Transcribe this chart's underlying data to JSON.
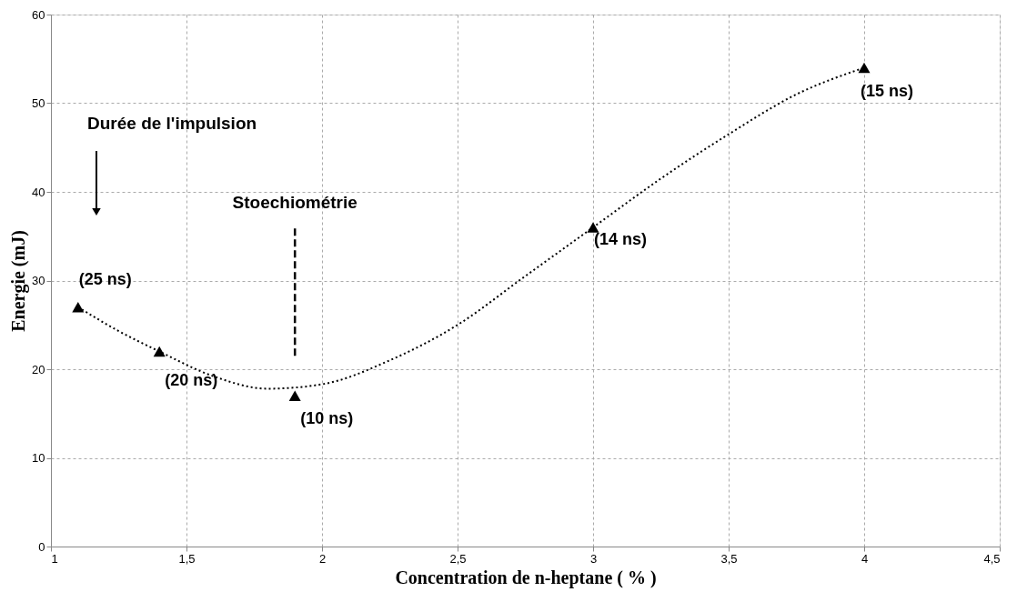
{
  "chart_data": {
    "type": "scatter",
    "xlabel": "Concentration de n-heptane ( % )",
    "ylabel": "Energie (mJ)",
    "xlim": [
      1,
      4.5
    ],
    "xticks": [
      1,
      {
        "value": 1.5,
        "label": "1,5"
      },
      2,
      {
        "value": 2.5,
        "label": "2,5"
      },
      3,
      {
        "value": 3.5,
        "label": "3,5"
      },
      4,
      {
        "value": 4.5,
        "label": "4,5"
      }
    ],
    "ylim": [
      0,
      60
    ],
    "yticks": [
      0,
      10,
      20,
      30,
      40,
      50,
      60
    ],
    "grid": true,
    "series": [
      {
        "type": "scatter",
        "color": "#000000",
        "marker": "triangle",
        "x": [
          1.1,
          1.4,
          1.9,
          3.0,
          4.0
        ],
        "values": [
          27,
          22,
          17,
          36,
          54
        ]
      },
      {
        "type": "line",
        "color": "#000000",
        "line_style": "dotted",
        "marker": "none",
        "x": [
          1.1,
          1.25,
          1.4,
          1.6,
          1.8,
          2.0,
          2.25,
          2.5,
          2.75,
          3.0,
          3.25,
          3.5,
          3.75,
          4.0
        ],
        "values": [
          27,
          24.3,
          22,
          19.2,
          17.8,
          18.3,
          21,
          25,
          30.5,
          36,
          41.5,
          46.5,
          51,
          54
        ]
      }
    ],
    "ref_lines": [
      {
        "axis": "x",
        "value": 1.9,
        "label": "Stoechiométrie",
        "line_style": "dashed",
        "color": "#000000"
      }
    ],
    "annotations": [
      {
        "text": "(25 ns)",
        "x": 1.1,
        "y": 27
      },
      {
        "text": "(20 ns)",
        "x": 1.4,
        "y": 22
      },
      {
        "text": "(10 ns)",
        "x": 1.9,
        "y": 17
      },
      {
        "text": "(14 ns)",
        "x": 3.0,
        "y": 36
      },
      {
        "text": "(15 ns)",
        "x": 4.0,
        "y": 54
      },
      "Durée de l'impulsion"
    ]
  }
}
